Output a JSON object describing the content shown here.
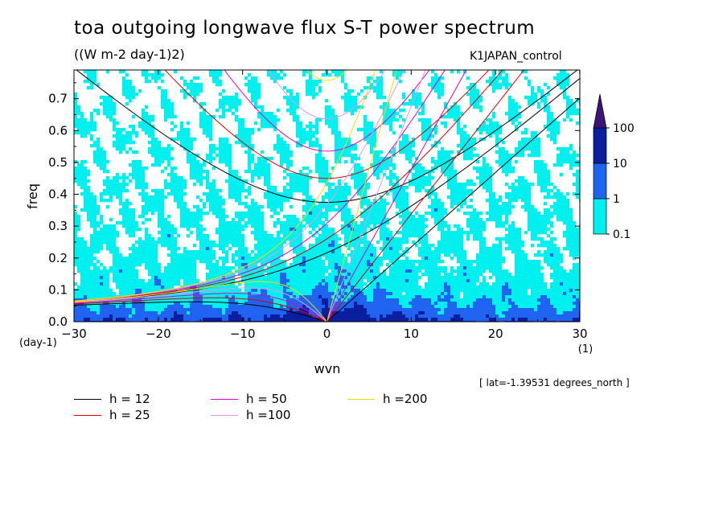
{
  "title": "toa outgoing longwave flux S-T power spectrum",
  "units": "((W m-2 day-1)2)",
  "experiment": "K1JAPAN_control",
  "location_note": "[ lat=-1.39531 degrees_north ]",
  "chart_data": {
    "type": "heatmap",
    "xlabel": "wvn",
    "ylabel": "freq",
    "x_unit_label": "(1)",
    "y_unit_label": "(day-1)",
    "xlim": [
      -30,
      30
    ],
    "ylim": [
      0,
      0.79
    ],
    "x_ticks": [
      -30,
      -20,
      -10,
      0,
      10,
      20,
      30
    ],
    "x_tick_labels": [
      "−30",
      "−20",
      "−10",
      "0",
      "10",
      "20",
      "30"
    ],
    "y_ticks": [
      0,
      0.1,
      0.2,
      0.3,
      0.4,
      0.5,
      0.6,
      0.7
    ],
    "y_tick_labels": [
      "0.0",
      "0.1",
      "0.2",
      "0.3",
      "0.4",
      "0.5",
      "0.6",
      "0.7"
    ],
    "colorbar": {
      "levels": [
        0.1,
        1,
        10,
        100
      ],
      "labels": [
        "0.1",
        "1",
        "10",
        "100"
      ],
      "colors": [
        "#ffffff",
        "#00f0f0",
        "#1e64f0",
        "#0a1ea0",
        "#3c1478"
      ],
      "extend": "max"
    },
    "dispersion_curves": [
      {
        "name": "h = 12",
        "h": 12,
        "color": "#000000"
      },
      {
        "name": "h = 25",
        "h": 25,
        "color": "#e00000"
      },
      {
        "name": "h = 50",
        "h": 50,
        "color": "#e000c8"
      },
      {
        "name": "h =100",
        "h": 100,
        "color": "#e696e6"
      },
      {
        "name": "h =200",
        "h": 200,
        "color": "#f0e000"
      }
    ]
  },
  "colors": {
    "cyan": "#00f0f0",
    "blue": "#1e64f0",
    "navy": "#0a1ea0",
    "purple": "#3c1478"
  }
}
